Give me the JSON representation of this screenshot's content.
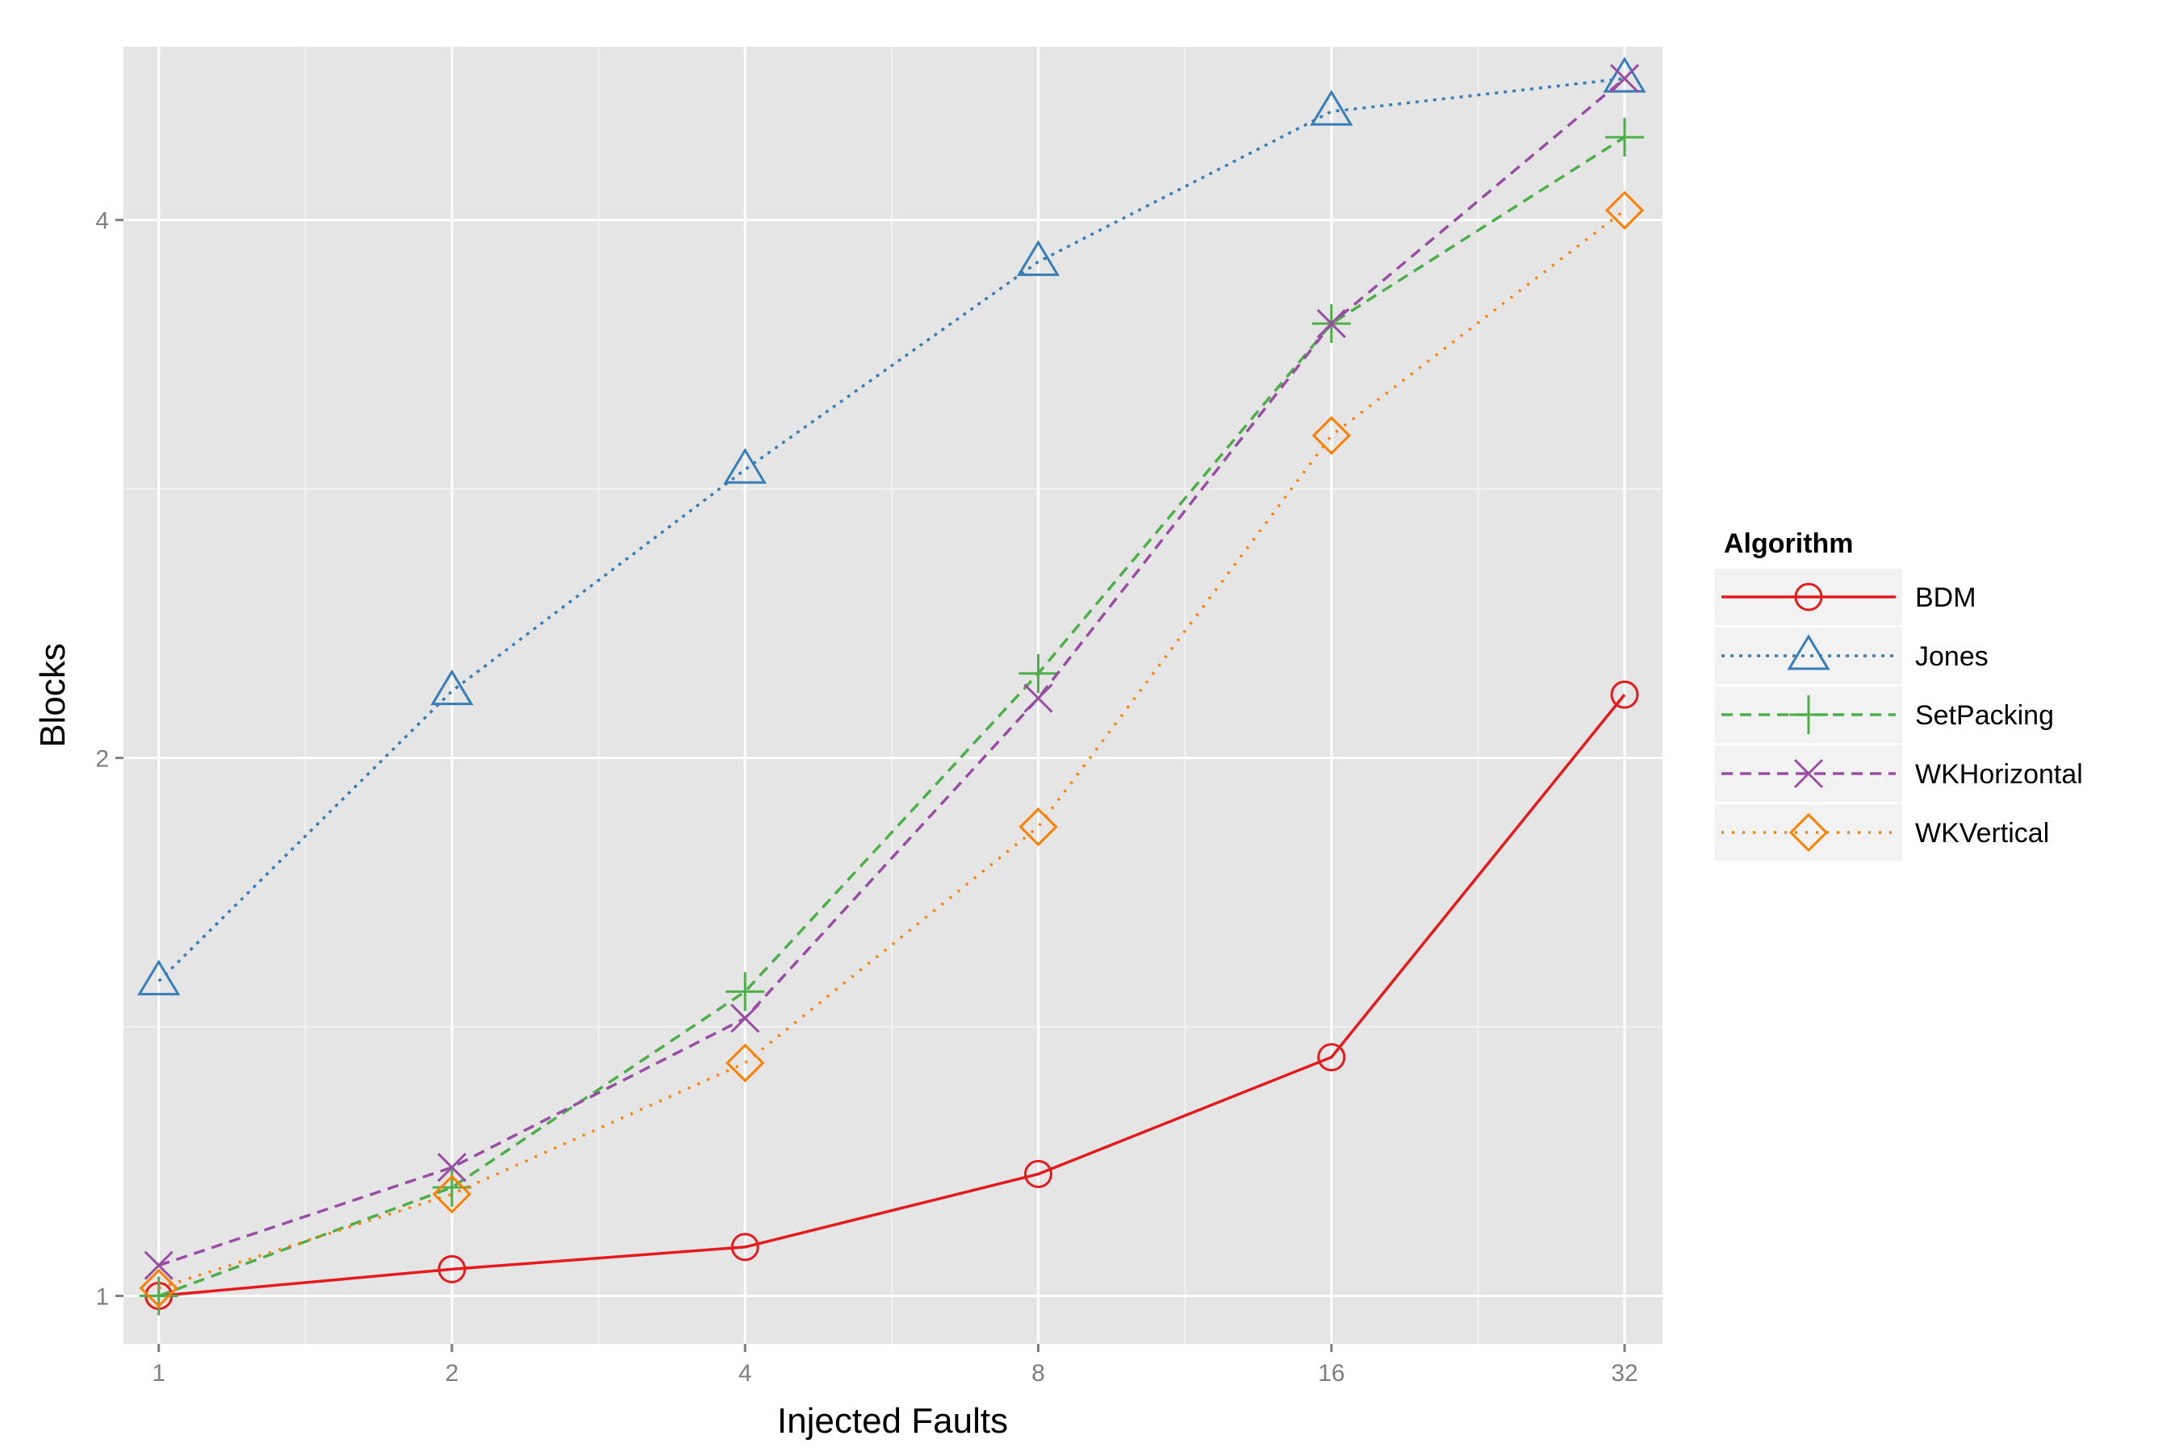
{
  "chart_data": {
    "type": "line",
    "title": "",
    "xlabel": "Injected Faults",
    "ylabel": "Blocks",
    "x_scale": "log2",
    "y_scale": "log2",
    "x": [
      1,
      2,
      4,
      8,
      16,
      32
    ],
    "x_tick_labels": [
      "1",
      "2",
      "4",
      "8",
      "16",
      "32"
    ],
    "y_ticks": [
      1,
      2,
      4
    ],
    "y_tick_labels": [
      "1",
      "2",
      "4"
    ],
    "xlim": [
      0.92,
      35
    ],
    "ylim": [
      0.94,
      5.0
    ],
    "grid": true,
    "legend_title": "Algorithm",
    "legend_position": "right",
    "series": [
      {
        "name": "BDM",
        "color": "#e41a1c",
        "dash": "solid",
        "marker": "circle",
        "values": [
          1.0,
          1.035,
          1.065,
          1.17,
          1.36,
          2.17
        ]
      },
      {
        "name": "Jones",
        "color": "#377eb8",
        "dash": "dotted-fine",
        "marker": "triangle",
        "values": [
          1.5,
          2.18,
          2.9,
          3.79,
          4.6,
          4.8
        ]
      },
      {
        "name": "SetPacking",
        "color": "#4daf4a",
        "dash": "dashed",
        "marker": "plus",
        "values": [
          1.0,
          1.15,
          1.48,
          2.23,
          3.5,
          4.45
        ]
      },
      {
        "name": "WKHorizontal",
        "color": "#984ea3",
        "dash": "dashed",
        "marker": "x",
        "values": [
          1.04,
          1.18,
          1.43,
          2.16,
          3.5,
          4.8
        ]
      },
      {
        "name": "WKVertical",
        "color": "#ff7f00",
        "dash": "dotted",
        "marker": "diamond",
        "values": [
          1.01,
          1.14,
          1.35,
          1.83,
          3.03,
          4.05
        ]
      }
    ]
  }
}
